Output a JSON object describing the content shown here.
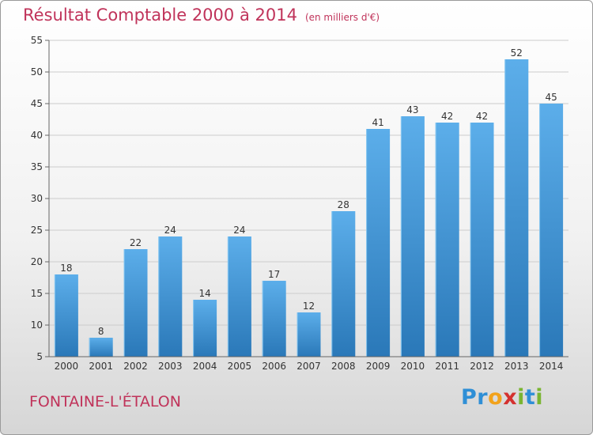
{
  "colors": {
    "title": "#c0335a",
    "bar_light": "#5caeea",
    "bar_dark": "#2a78b8",
    "axis": "#666666",
    "grid": "#cccccc"
  },
  "chart_data": {
    "type": "bar",
    "title": "Résultat Comptable 2000 à 2014",
    "subtitle": "(en milliers d'€)",
    "xlabel": "",
    "ylabel": "",
    "categories": [
      "2000",
      "2001",
      "2002",
      "2003",
      "2004",
      "2005",
      "2006",
      "2007",
      "2008",
      "2009",
      "2010",
      "2011",
      "2012",
      "2013",
      "2014"
    ],
    "values": [
      18,
      8,
      22,
      24,
      14,
      24,
      17,
      12,
      28,
      41,
      43,
      42,
      42,
      52,
      45
    ],
    "ylim": [
      5,
      55
    ],
    "yticks": [
      5,
      10,
      15,
      20,
      25,
      30,
      35,
      40,
      45,
      50,
      55
    ],
    "grid": true,
    "data_labels": true
  },
  "footer": {
    "town": "FONTAINE-L'ÉTALON",
    "logo": {
      "letters": [
        "P",
        "r",
        "o",
        "x",
        "i",
        "t",
        "i"
      ],
      "colors": [
        "#2f8fd6",
        "#2f8fd6",
        "#f2a21b",
        "#d4312f",
        "#7ab531",
        "#2f8fd6",
        "#7ab531"
      ]
    }
  }
}
